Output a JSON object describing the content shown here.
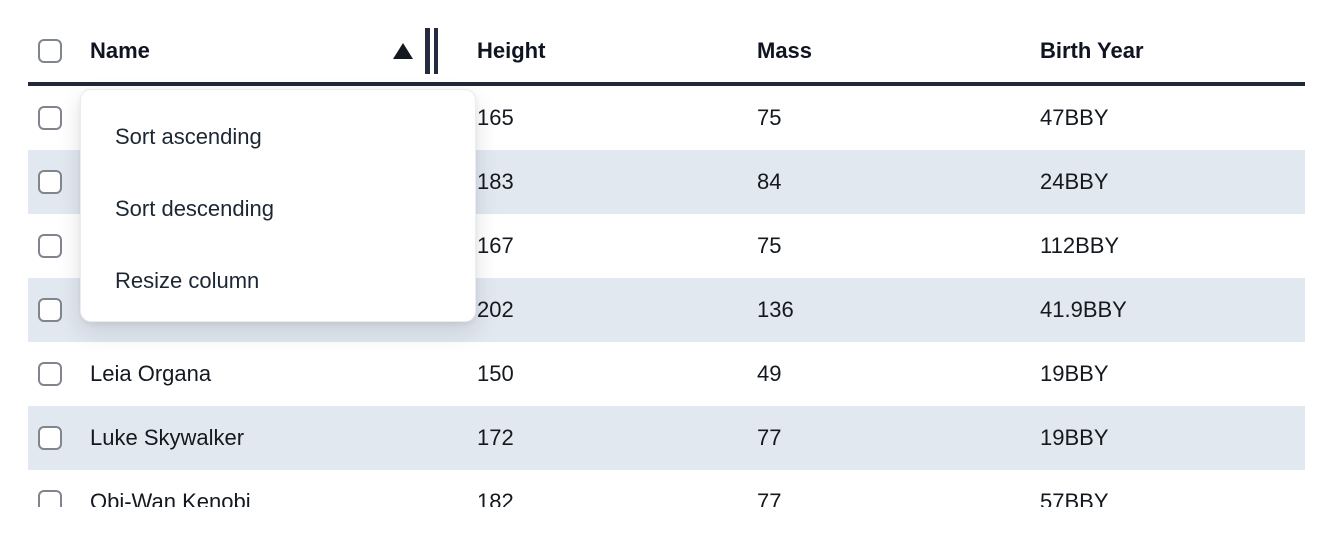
{
  "table": {
    "columns": [
      {
        "label": "Name",
        "sorted": "ascending"
      },
      {
        "label": "Height"
      },
      {
        "label": "Mass"
      },
      {
        "label": "Birth Year"
      }
    ],
    "rows": [
      {
        "name": "",
        "height": "165",
        "mass": "75",
        "birth_year": "47BBY",
        "checked": false
      },
      {
        "name": "",
        "height": "183",
        "mass": "84",
        "birth_year": "24BBY",
        "checked": false
      },
      {
        "name": "",
        "height": "167",
        "mass": "75",
        "birth_year": "112BBY",
        "checked": false
      },
      {
        "name": "",
        "height": "202",
        "mass": "136",
        "birth_year": "41.9BBY",
        "checked": false
      },
      {
        "name": "Leia Organa",
        "height": "150",
        "mass": "49",
        "birth_year": "19BBY",
        "checked": false
      },
      {
        "name": "Luke Skywalker",
        "height": "172",
        "mass": "77",
        "birth_year": "19BBY",
        "checked": false
      },
      {
        "name": "Obi-Wan Kenobi",
        "height": "182",
        "mass": "77",
        "birth_year": "57BBY",
        "checked": false
      }
    ],
    "header_checkbox_checked": false
  },
  "context_menu": {
    "items": [
      "Sort ascending",
      "Sort descending",
      "Resize column"
    ]
  },
  "icons": {
    "sort_ascending_icon": "filled triangle pointing up",
    "column_resize_icon": "double vertical bars"
  },
  "colors": {
    "row_stripe": "#e2e8f0",
    "header_border": "#1f2937",
    "text": "#14181f",
    "menu_text": "#1d2633",
    "checkbox_border": "#81858d"
  }
}
